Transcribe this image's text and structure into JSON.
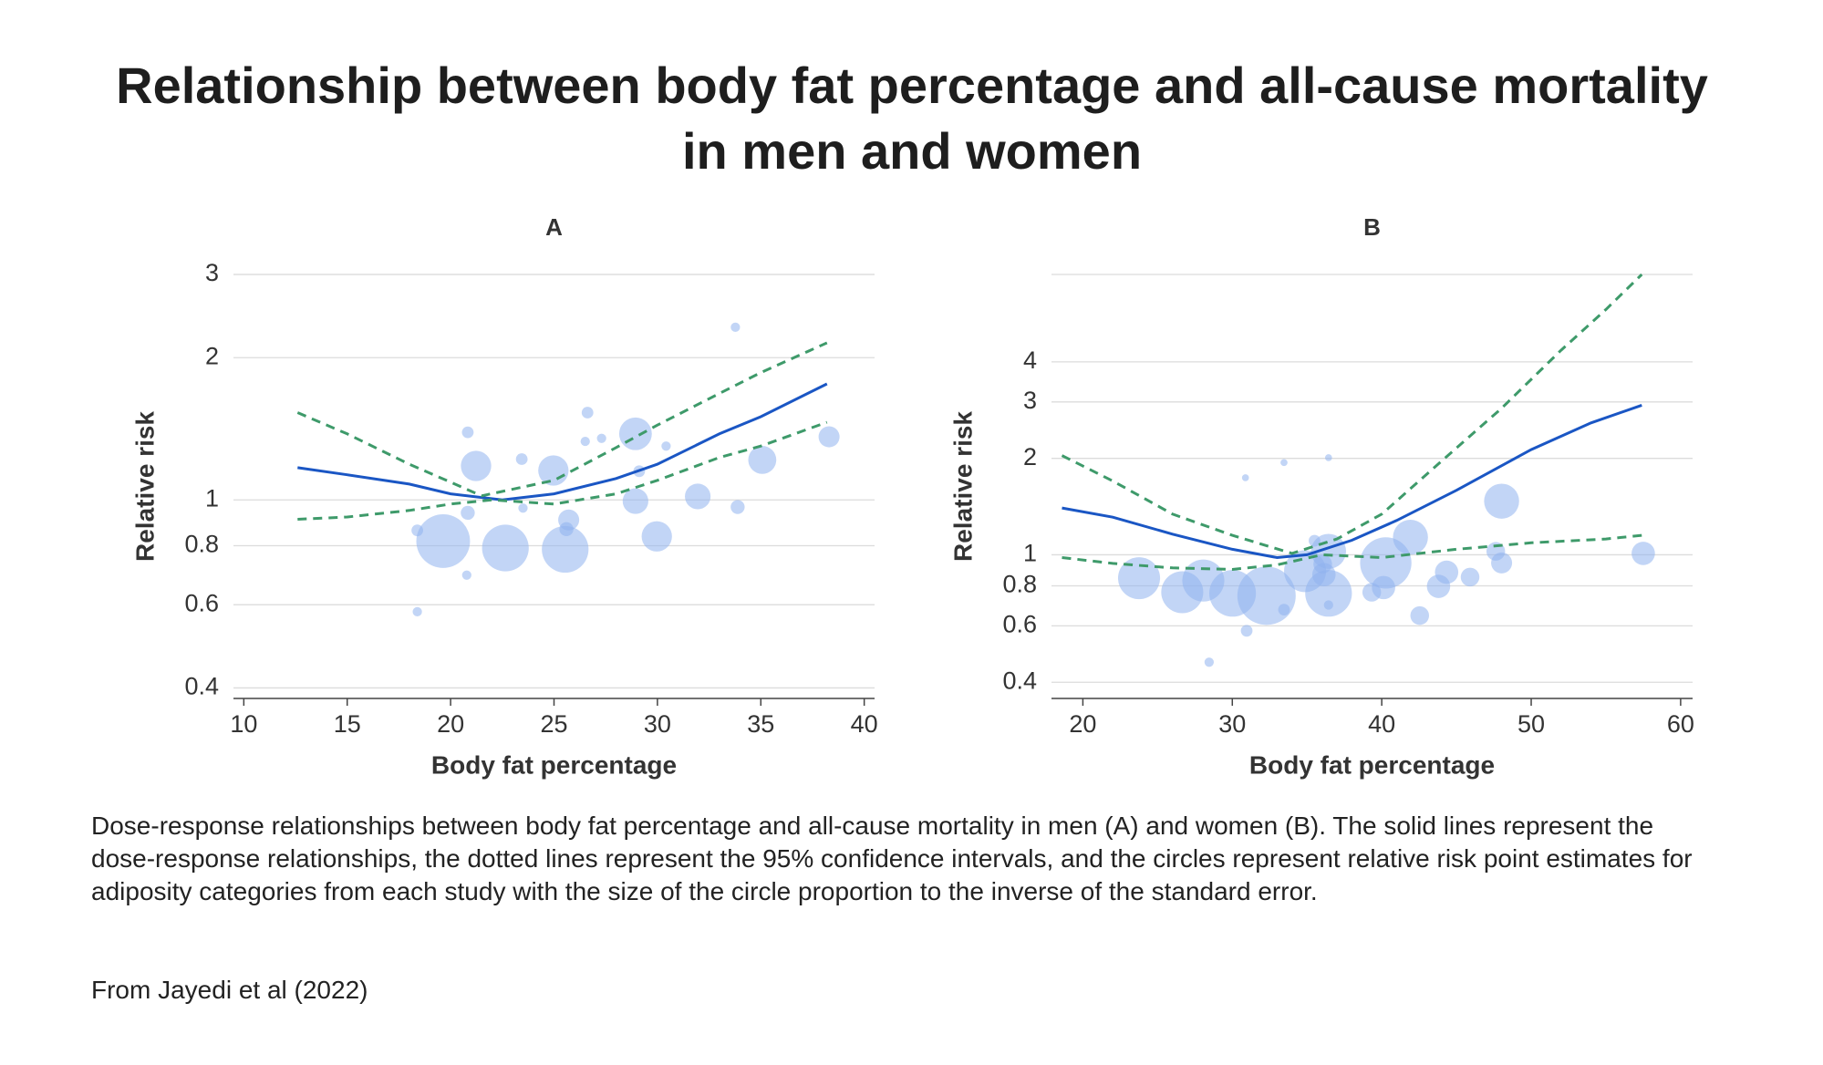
{
  "title": "Relationship between body fat percentage and all-cause mortality in men and women",
  "caption": "Dose-response relationships between body fat percentage and all-cause mortality in men (A) and women (B). The solid lines represent the dose-response relationships, the dotted lines represent the 95% confidence intervals, and the circles represent relative risk point estimates for adiposity categories from each study with the size of the circle proportion to the inverse of the standard error.",
  "source": "From Jayedi et al (2022)",
  "chart_data": [
    {
      "type": "scatter",
      "title": "A",
      "xlabel": "Body fat percentage",
      "ylabel": "Relative risk",
      "xlim": [
        9.5,
        40.5
      ],
      "ylim": [
        0.38,
        3
      ],
      "xticks": [
        10,
        15,
        20,
        25,
        30,
        35,
        40
      ],
      "yticks": [
        0.4,
        0.6,
        0.8,
        1,
        2,
        3
      ],
      "log_y": true,
      "grid": true,
      "points": {
        "color": "#8fb3ee",
        "x": [
          19.64,
          22.65,
          25.54,
          21.23,
          24.97,
          28.94,
          35.07,
          31.95,
          28.94,
          29.97,
          25.71,
          25.6,
          20.83,
          18.39,
          23.44,
          26.62,
          20.83,
          26.51,
          27.3,
          29.12,
          30.42,
          33.88,
          38.3,
          33.77,
          18.39,
          20.78,
          23.5
        ],
        "y": [
          0.818,
          0.791,
          0.786,
          1.18,
          1.154,
          1.38,
          1.215,
          1.017,
          0.994,
          0.837,
          0.907,
          0.867,
          0.939,
          0.862,
          1.22,
          1.53,
          1.39,
          1.33,
          1.35,
          1.15,
          1.3,
          0.966,
          1.36,
          2.32,
          0.58,
          0.693,
          0.961
        ],
        "sizes": [
          23,
          20,
          20,
          13,
          13,
          14,
          12,
          11,
          11,
          13,
          9,
          6,
          6,
          5,
          5,
          5,
          5,
          4,
          4,
          5,
          4,
          6,
          9,
          4,
          4,
          4,
          4
        ]
      },
      "series": [
        {
          "style": "solid",
          "color": "#1a56c4",
          "x": [
            12.6,
            15,
            18,
            20,
            22.5,
            25,
            28,
            30,
            33,
            35,
            38.2
          ],
          "y": [
            1.17,
            1.13,
            1.08,
            1.03,
            1.0,
            1.03,
            1.11,
            1.19,
            1.38,
            1.5,
            1.76
          ]
        },
        {
          "style": "dashed",
          "color": "#3e9a6a",
          "x": [
            12.6,
            15,
            18,
            20,
            21.5,
            25,
            28,
            30,
            33,
            35,
            38.2
          ],
          "y": [
            1.53,
            1.38,
            1.19,
            1.09,
            1.02,
            1.1,
            1.29,
            1.44,
            1.68,
            1.86,
            2.15
          ]
        },
        {
          "style": "dashed",
          "color": "#3e9a6a",
          "x": [
            12.6,
            15,
            18,
            20,
            22,
            25,
            28,
            30,
            33,
            35,
            38.2
          ],
          "y": [
            0.91,
            0.92,
            0.95,
            0.98,
            1.0,
            0.98,
            1.03,
            1.1,
            1.23,
            1.3,
            1.46
          ]
        }
      ]
    },
    {
      "type": "scatter",
      "title": "B",
      "xlabel": "Body fat percentage",
      "ylabel": "Relative risk",
      "xlim": [
        17.9,
        60.8
      ],
      "ylim": [
        0.356,
        7.5
      ],
      "xticks": [
        20,
        30,
        40,
        50,
        60
      ],
      "yticks": [
        0.4,
        0.6,
        0.8,
        1,
        2,
        3,
        4
      ],
      "log_y": true,
      "grid": true,
      "points": {
        "color": "#8fb3ee",
        "x": [
          23.76,
          26.65,
          28.06,
          30.02,
          32.29,
          34.87,
          36.44,
          36.44,
          36.13,
          36.05,
          35.5,
          40.27,
          41.92,
          40.12,
          39.33,
          43.8,
          44.34,
          45.91,
          47.63,
          48.02,
          48.02,
          57.5,
          42.54,
          33.46,
          30.96,
          36.44,
          28.45,
          30.88,
          33.46,
          36.44
        ],
        "y": [
          0.845,
          0.764,
          0.831,
          0.758,
          0.745,
          0.889,
          0.758,
          1.025,
          0.867,
          0.935,
          1.106,
          0.943,
          1.134,
          0.79,
          0.764,
          0.797,
          0.882,
          0.852,
          1.025,
          0.943,
          1.47,
          1.01,
          0.646,
          0.674,
          0.579,
          0.697,
          0.462,
          1.74,
          1.94,
          2.01
        ],
        "sizes": [
          18,
          18,
          18,
          20,
          25,
          18,
          20,
          15,
          10,
          8,
          5,
          22,
          15,
          10,
          8,
          10,
          10,
          8,
          8,
          9,
          15,
          10,
          8,
          5,
          5,
          4,
          4,
          3,
          3,
          3
        ]
      },
      "series": [
        {
          "style": "solid",
          "color": "#1a56c4",
          "x": [
            18.6,
            22,
            26,
            30,
            33,
            35,
            38,
            41,
            45,
            50,
            54,
            57.4
          ],
          "y": [
            1.4,
            1.31,
            1.16,
            1.04,
            0.98,
            1.0,
            1.11,
            1.28,
            1.59,
            2.13,
            2.58,
            2.93
          ]
        },
        {
          "style": "dashed",
          "color": "#3e9a6a",
          "x": [
            18.6,
            22,
            26,
            30,
            34,
            37,
            40,
            44,
            48,
            52,
            55,
            57.4
          ],
          "y": [
            2.04,
            1.7,
            1.34,
            1.15,
            1.01,
            1.12,
            1.34,
            1.96,
            2.86,
            4.35,
            5.83,
            7.5
          ]
        },
        {
          "style": "dashed",
          "color": "#3e9a6a",
          "x": [
            18.6,
            22,
            26,
            30,
            33,
            36,
            40,
            45,
            50,
            55,
            57.4
          ],
          "y": [
            0.98,
            0.94,
            0.91,
            0.9,
            0.93,
            1.0,
            0.98,
            1.04,
            1.09,
            1.12,
            1.15
          ]
        }
      ]
    }
  ]
}
